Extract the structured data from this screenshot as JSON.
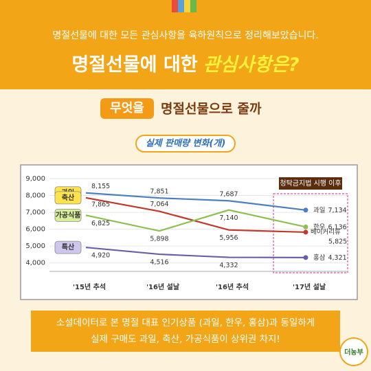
{
  "header": {
    "subtitle": "명절선물에 대한 모든 관심사항을 육하원칙으로 정리해보았습니다.",
    "title_main": "명절선물에 대한",
    "title_highlight": "관심사항은?"
  },
  "section": {
    "badge": "무엇을",
    "heading": "명절선물으로 줄까"
  },
  "chart_data": {
    "type": "line",
    "title": "실제 판매량 변화(개)",
    "categories": [
      "'15년 추석",
      "'16년 설날",
      "'16년 추석",
      "'17년 설날"
    ],
    "ylim": [
      3500,
      9000
    ],
    "yticks": [
      {
        "value": 4000,
        "label": "4,000"
      },
      {
        "value": 5000,
        "label": "5,000"
      },
      {
        "value": 6000,
        "label": "6,000"
      },
      {
        "value": 7000,
        "label": "7,000"
      },
      {
        "value": 8000,
        "label": "8,000"
      },
      {
        "value": 9000,
        "label": "9,000"
      }
    ],
    "grid": true,
    "annotation": "청탁금지법 시행 이후",
    "series": [
      {
        "name": "과일",
        "end_name": "과일",
        "color": "#4a7fc0",
        "badge_color": "#ffe34d",
        "values": [
          8155,
          7851,
          7687,
          7134
        ],
        "value_labels": [
          "8,155",
          "7,851",
          "7,687",
          "7,134"
        ]
      },
      {
        "name": "축산",
        "end_name": "베이커리류",
        "color": "#c0392b",
        "badge_color": "#ffe34d",
        "values": [
          7865,
          7064,
          5956,
          5825
        ],
        "value_labels": [
          "7,865",
          "7,064",
          "5,956",
          "5,825"
        ]
      },
      {
        "name": "가공식품",
        "end_name": "한우",
        "color": "#8dc050",
        "badge_color": "#d8ef9a",
        "values": [
          6825,
          5898,
          7140,
          6136
        ],
        "value_labels": [
          "6,825",
          "5,898",
          "7,140",
          "6,136"
        ]
      },
      {
        "name": "특산",
        "end_name": "홍삼",
        "color": "#6b5ea8",
        "badge_color": "#cfc6ee",
        "values": [
          4920,
          4516,
          4332,
          4321
        ],
        "value_labels": [
          "4,920",
          "4,516",
          "4,332",
          "4,321"
        ]
      }
    ]
  },
  "footer": {
    "line1": "소셜데이터로 본 명절 대표 인기상품 (과일, 한우, 홍삼)과 동일하게",
    "line2": "실제 구매도 과일, 축산, 가공식품이 상위권 차지!"
  },
  "logo": "더농부"
}
